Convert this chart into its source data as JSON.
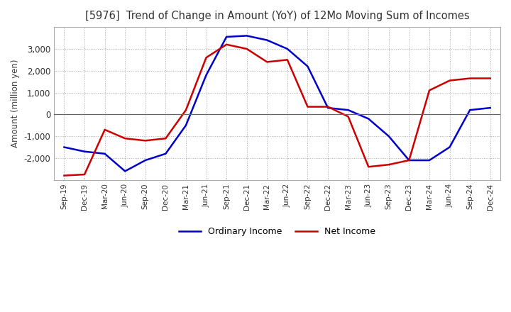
{
  "title": "[5976]  Trend of Change in Amount (YoY) of 12Mo Moving Sum of Incomes",
  "ylabel": "Amount (million yen)",
  "x_labels": [
    "Sep-19",
    "Dec-19",
    "Mar-20",
    "Jun-20",
    "Sep-20",
    "Dec-20",
    "Mar-21",
    "Jun-21",
    "Sep-21",
    "Dec-21",
    "Mar-22",
    "Jun-22",
    "Sep-22",
    "Dec-22",
    "Mar-23",
    "Jun-23",
    "Sep-23",
    "Dec-23",
    "Mar-24",
    "Jun-24",
    "Sep-24",
    "Dec-24"
  ],
  "ordinary_income": [
    -1500,
    -1700,
    -1800,
    -2600,
    -2100,
    -1800,
    -500,
    1800,
    3550,
    3600,
    3400,
    3000,
    2200,
    300,
    200,
    -200,
    -1000,
    -2100,
    -2100,
    -1500,
    200,
    300
  ],
  "net_income": [
    -2800,
    -2750,
    -700,
    -1100,
    -1200,
    -1100,
    200,
    2600,
    3200,
    3000,
    2400,
    2500,
    350,
    350,
    -100,
    -2400,
    -2300,
    -2100,
    1100,
    1550,
    1650,
    1650
  ],
  "ordinary_income_color": "#0000cc",
  "net_income_color": "#cc0000",
  "ylim": [
    -3000,
    4000
  ],
  "yticks": [
    -2000,
    -1000,
    0,
    1000,
    2000,
    3000
  ],
  "background_color": "#ffffff",
  "grid_color": "#aaaaaa"
}
